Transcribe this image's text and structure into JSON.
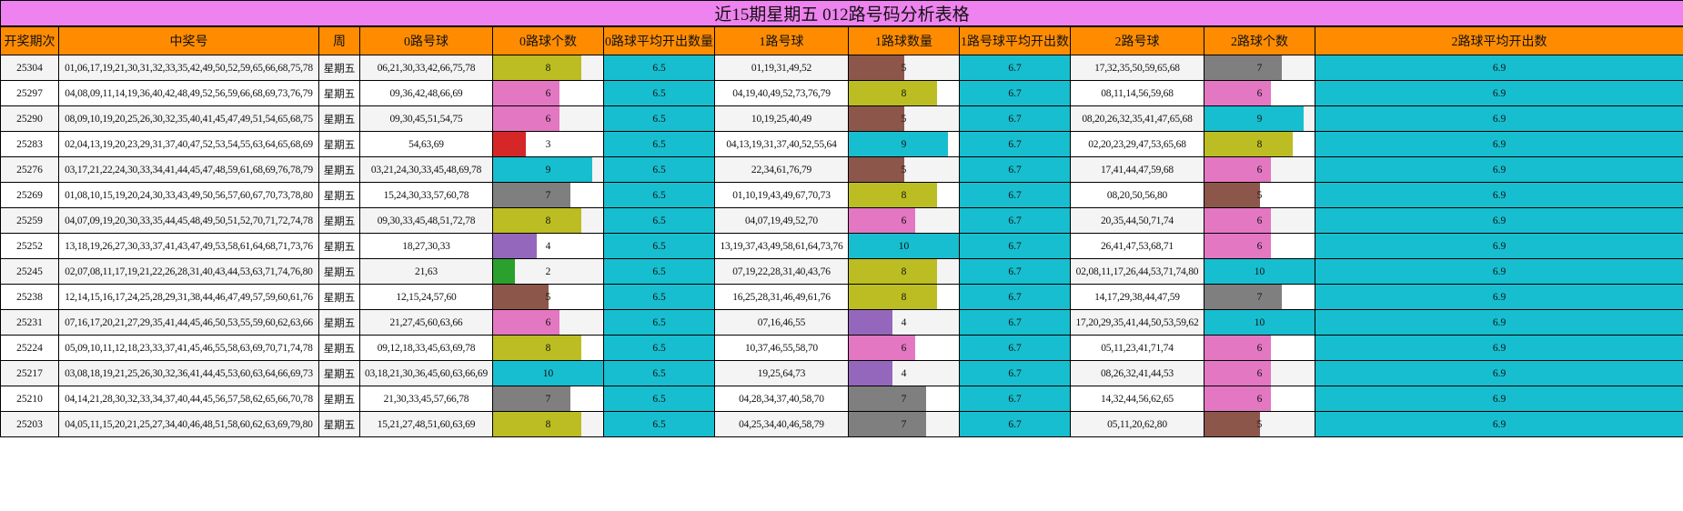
{
  "title": "近15期星期五 012路号码分析表格",
  "headers": [
    "开奖期次",
    "中奖号",
    "周",
    "0路号球",
    "0路球个数",
    "0路球平均开出数量",
    "1路号球",
    "1路球数量",
    "1路号球平均开出数",
    "2路号球",
    "2路球个数",
    "2路球平均开出数"
  ],
  "colors": {
    "title_bg": "#ee82ee",
    "header_bg": "#ff8c00",
    "avg_bg": "#17becf",
    "count_colors": {
      "2": "#2ca02c",
      "3": "#d62728",
      "4": "#9467bd",
      "5": "#8c564b",
      "6": "#e377c2",
      "7": "#7f7f7f",
      "8": "#bcbd22",
      "9": "#17becf",
      "10": "#17becf"
    }
  },
  "rows": [
    {
      "period": "25304",
      "numbers": "01,06,17,19,21,30,31,32,33,35,42,49,50,52,59,65,66,68,75,78",
      "weekday": "星期五",
      "r0_balls": "06,21,30,33,42,66,75,78",
      "r0_count": "8",
      "r0_avg": "6.5",
      "r1_balls": "01,19,31,49,52",
      "r1_count": "5",
      "r1_avg": "6.7",
      "r2_balls": "17,32,35,50,59,65,68",
      "r2_count": "7",
      "r2_avg": "6.9"
    },
    {
      "period": "25297",
      "numbers": "04,08,09,11,14,19,36,40,42,48,49,52,56,59,66,68,69,73,76,79",
      "weekday": "星期五",
      "r0_balls": "09,36,42,48,66,69",
      "r0_count": "6",
      "r0_avg": "6.5",
      "r1_balls": "04,19,40,49,52,73,76,79",
      "r1_count": "8",
      "r1_avg": "6.7",
      "r2_balls": "08,11,14,56,59,68",
      "r2_count": "6",
      "r2_avg": "6.9"
    },
    {
      "period": "25290",
      "numbers": "08,09,10,19,20,25,26,30,32,35,40,41,45,47,49,51,54,65,68,75",
      "weekday": "星期五",
      "r0_balls": "09,30,45,51,54,75",
      "r0_count": "6",
      "r0_avg": "6.5",
      "r1_balls": "10,19,25,40,49",
      "r1_count": "5",
      "r1_avg": "6.7",
      "r2_balls": "08,20,26,32,35,41,47,65,68",
      "r2_count": "9",
      "r2_avg": "6.9"
    },
    {
      "period": "25283",
      "numbers": "02,04,13,19,20,23,29,31,37,40,47,52,53,54,55,63,64,65,68,69",
      "weekday": "星期五",
      "r0_balls": "54,63,69",
      "r0_count": "3",
      "r0_avg": "6.5",
      "r1_balls": "04,13,19,31,37,40,52,55,64",
      "r1_count": "9",
      "r1_avg": "6.7",
      "r2_balls": "02,20,23,29,47,53,65,68",
      "r2_count": "8",
      "r2_avg": "6.9"
    },
    {
      "period": "25276",
      "numbers": "03,17,21,22,24,30,33,34,41,44,45,47,48,59,61,68,69,76,78,79",
      "weekday": "星期五",
      "r0_balls": "03,21,24,30,33,45,48,69,78",
      "r0_count": "9",
      "r0_avg": "6.5",
      "r1_balls": "22,34,61,76,79",
      "r1_count": "5",
      "r1_avg": "6.7",
      "r2_balls": "17,41,44,47,59,68",
      "r2_count": "6",
      "r2_avg": "6.9"
    },
    {
      "period": "25269",
      "numbers": "01,08,10,15,19,20,24,30,33,43,49,50,56,57,60,67,70,73,78,80",
      "weekday": "星期五",
      "r0_balls": "15,24,30,33,57,60,78",
      "r0_count": "7",
      "r0_avg": "6.5",
      "r1_balls": "01,10,19,43,49,67,70,73",
      "r1_count": "8",
      "r1_avg": "6.7",
      "r2_balls": "08,20,50,56,80",
      "r2_count": "5",
      "r2_avg": "6.9"
    },
    {
      "period": "25259",
      "numbers": "04,07,09,19,20,30,33,35,44,45,48,49,50,51,52,70,71,72,74,78",
      "weekday": "星期五",
      "r0_balls": "09,30,33,45,48,51,72,78",
      "r0_count": "8",
      "r0_avg": "6.5",
      "r1_balls": "04,07,19,49,52,70",
      "r1_count": "6",
      "r1_avg": "6.7",
      "r2_balls": "20,35,44,50,71,74",
      "r2_count": "6",
      "r2_avg": "6.9"
    },
    {
      "period": "25252",
      "numbers": "13,18,19,26,27,30,33,37,41,43,47,49,53,58,61,64,68,71,73,76",
      "weekday": "星期五",
      "r0_balls": "18,27,30,33",
      "r0_count": "4",
      "r0_avg": "6.5",
      "r1_balls": "13,19,37,43,49,58,61,64,73,76",
      "r1_count": "10",
      "r1_avg": "6.7",
      "r2_balls": "26,41,47,53,68,71",
      "r2_count": "6",
      "r2_avg": "6.9"
    },
    {
      "period": "25245",
      "numbers": "02,07,08,11,17,19,21,22,26,28,31,40,43,44,53,63,71,74,76,80",
      "weekday": "星期五",
      "r0_balls": "21,63",
      "r0_count": "2",
      "r0_avg": "6.5",
      "r1_balls": "07,19,22,28,31,40,43,76",
      "r1_count": "8",
      "r1_avg": "6.7",
      "r2_balls": "02,08,11,17,26,44,53,71,74,80",
      "r2_count": "10",
      "r2_avg": "6.9"
    },
    {
      "period": "25238",
      "numbers": "12,14,15,16,17,24,25,28,29,31,38,44,46,47,49,57,59,60,61,76",
      "weekday": "星期五",
      "r0_balls": "12,15,24,57,60",
      "r0_count": "5",
      "r0_avg": "6.5",
      "r1_balls": "16,25,28,31,46,49,61,76",
      "r1_count": "8",
      "r1_avg": "6.7",
      "r2_balls": "14,17,29,38,44,47,59",
      "r2_count": "7",
      "r2_avg": "6.9"
    },
    {
      "period": "25231",
      "numbers": "07,16,17,20,21,27,29,35,41,44,45,46,50,53,55,59,60,62,63,66",
      "weekday": "星期五",
      "r0_balls": "21,27,45,60,63,66",
      "r0_count": "6",
      "r0_avg": "6.5",
      "r1_balls": "07,16,46,55",
      "r1_count": "4",
      "r1_avg": "6.7",
      "r2_balls": "17,20,29,35,41,44,50,53,59,62",
      "r2_count": "10",
      "r2_avg": "6.9"
    },
    {
      "period": "25224",
      "numbers": "05,09,10,11,12,18,23,33,37,41,45,46,55,58,63,69,70,71,74,78",
      "weekday": "星期五",
      "r0_balls": "09,12,18,33,45,63,69,78",
      "r0_count": "8",
      "r0_avg": "6.5",
      "r1_balls": "10,37,46,55,58,70",
      "r1_count": "6",
      "r1_avg": "6.7",
      "r2_balls": "05,11,23,41,71,74",
      "r2_count": "6",
      "r2_avg": "6.9"
    },
    {
      "period": "25217",
      "numbers": "03,08,18,19,21,25,26,30,32,36,41,44,45,53,60,63,64,66,69,73",
      "weekday": "星期五",
      "r0_balls": "03,18,21,30,36,45,60,63,66,69",
      "r0_count": "10",
      "r0_avg": "6.5",
      "r1_balls": "19,25,64,73",
      "r1_count": "4",
      "r1_avg": "6.7",
      "r2_balls": "08,26,32,41,44,53",
      "r2_count": "6",
      "r2_avg": "6.9"
    },
    {
      "period": "25210",
      "numbers": "04,14,21,28,30,32,33,34,37,40,44,45,56,57,58,62,65,66,70,78",
      "weekday": "星期五",
      "r0_balls": "21,30,33,45,57,66,78",
      "r0_count": "7",
      "r0_avg": "6.5",
      "r1_balls": "04,28,34,37,40,58,70",
      "r1_count": "7",
      "r1_avg": "6.7",
      "r2_balls": "14,32,44,56,62,65",
      "r2_count": "6",
      "r2_avg": "6.9"
    },
    {
      "period": "25203",
      "numbers": "04,05,11,15,20,21,25,27,34,40,46,48,51,58,60,62,63,69,79,80",
      "weekday": "星期五",
      "r0_balls": "15,21,27,48,51,60,63,69",
      "r0_count": "8",
      "r0_avg": "6.5",
      "r1_balls": "04,25,34,40,46,58,79",
      "r1_count": "7",
      "r1_avg": "6.7",
      "r2_balls": "05,11,20,62,80",
      "r2_count": "5",
      "r2_avg": "6.9"
    }
  ]
}
